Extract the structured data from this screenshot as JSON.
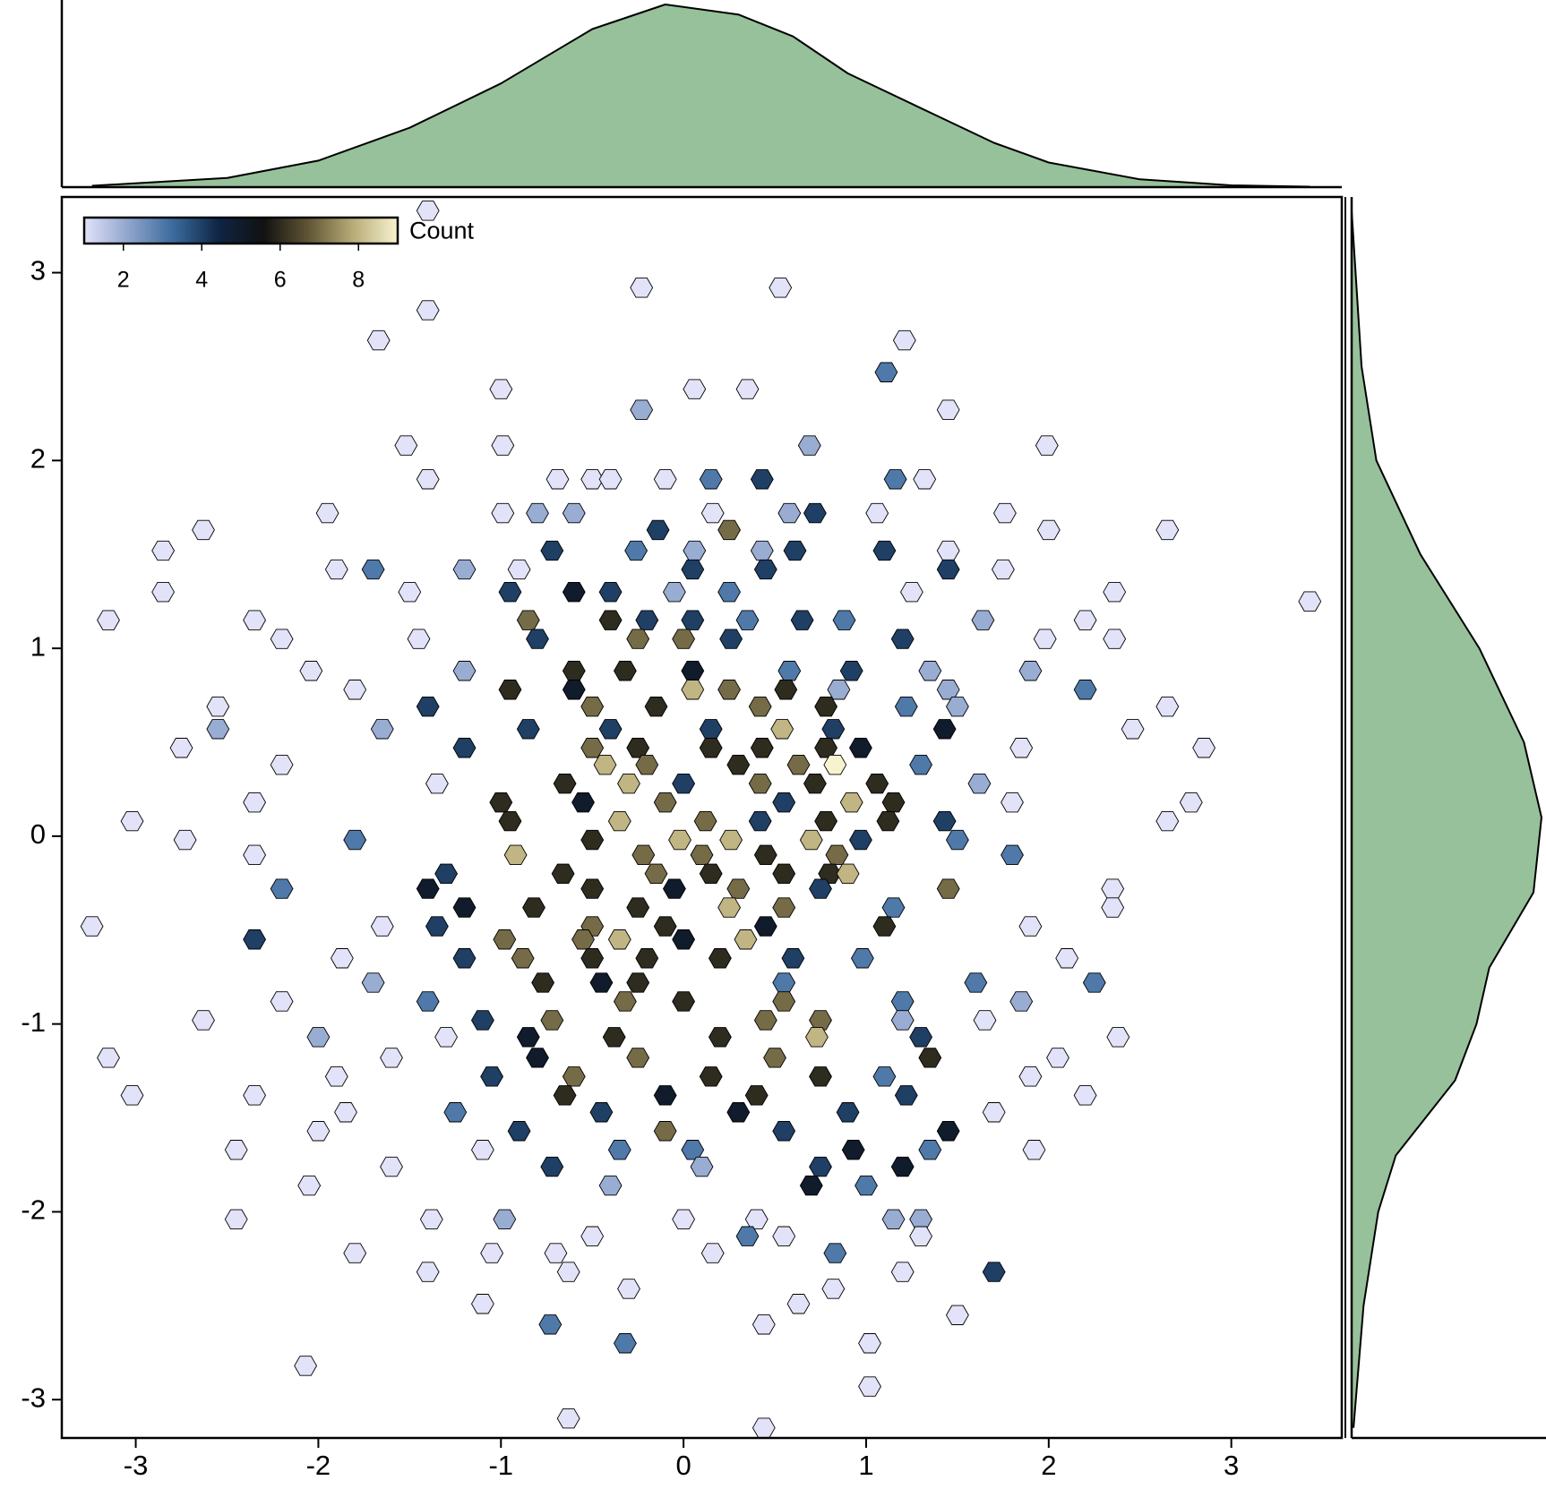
{
  "chart_data": {
    "type": "hexbin",
    "xlim": [
      -3.405,
      3.605
    ],
    "ylim": [
      -3.204,
      3.403
    ],
    "xticks": [
      -3,
      -2,
      -1,
      0,
      1,
      2,
      3
    ],
    "yticks": [
      -3,
      -2,
      -1,
      0,
      1,
      2,
      3
    ],
    "colorbar": {
      "label": "Count",
      "lim": [
        1,
        9
      ],
      "ticks": [
        2,
        4,
        6,
        8
      ]
    },
    "colormap": [
      "#e2e2f8",
      "#8ea4cc",
      "#3a6a9c",
      "#0f2544",
      "#111111",
      "#5f5535",
      "#b8ac78",
      "#f7f3cf"
    ],
    "kde_color": "#97c19a",
    "top_kde": {
      "x": [
        -3.24,
        -2.5,
        -2.0,
        -1.5,
        -1.0,
        -0.5,
        -0.1,
        0.3,
        0.6,
        0.9,
        1.3,
        1.7,
        2.0,
        2.5,
        3.0,
        3.43
      ],
      "density": [
        0.003,
        0.02,
        0.058,
        0.13,
        0.227,
        0.346,
        0.4,
        0.378,
        0.33,
        0.249,
        0.173,
        0.097,
        0.054,
        0.017,
        0.004,
        0.001
      ]
    },
    "right_kde": {
      "y": [
        3.33,
        2.5,
        2.0,
        1.5,
        1.0,
        0.5,
        0.1,
        -0.3,
        -0.7,
        -1.0,
        -1.3,
        -1.7,
        -2.0,
        -2.5,
        -3.15
      ],
      "density": [
        0.0,
        0.021,
        0.052,
        0.145,
        0.269,
        0.363,
        0.4,
        0.383,
        0.29,
        0.263,
        0.218,
        0.093,
        0.056,
        0.025,
        0.004
      ]
    },
    "rows": [
      {
        "y": 3.33,
        "x": [
          -1.4
        ],
        "counts": [
          1
        ]
      },
      {
        "y": 2.92,
        "x": [
          -0.23,
          0.53
        ],
        "counts": [
          1,
          1
        ]
      },
      {
        "y": 2.8,
        "x": [
          -1.4
        ],
        "counts": [
          1
        ]
      },
      {
        "y": 2.64,
        "x": [
          -1.67,
          1.21
        ],
        "counts": [
          1,
          1
        ]
      },
      {
        "y": 2.47,
        "x": [
          1.11
        ],
        "counts": [
          3
        ]
      },
      {
        "y": 2.38,
        "x": [
          -1.0,
          0.06,
          0.35
        ],
        "counts": [
          1,
          1,
          1
        ]
      },
      {
        "y": 2.27,
        "x": [
          -0.23,
          1.45
        ],
        "counts": [
          2,
          1
        ]
      },
      {
        "y": 2.08,
        "x": [
          -1.52,
          -0.99,
          0.69,
          1.99
        ],
        "counts": [
          1,
          1,
          2,
          1
        ]
      },
      {
        "y": 1.9,
        "x": [
          -1.4,
          -0.69,
          -0.5,
          -0.4,
          -0.1,
          0.15,
          0.43,
          1.16,
          1.32
        ],
        "counts": [
          1,
          1,
          1,
          1,
          1,
          3,
          4,
          3,
          1
        ]
      },
      {
        "y": 1.72,
        "x": [
          -1.95,
          -0.99,
          -0.8,
          -0.6,
          0.16,
          0.58,
          0.72,
          1.06,
          1.76
        ],
        "counts": [
          1,
          1,
          2,
          2,
          1,
          2,
          4,
          1,
          1
        ]
      },
      {
        "y": 1.63,
        "x": [
          -2.63,
          -0.14,
          0.25,
          2.0,
          2.65
        ],
        "counts": [
          1,
          4,
          7,
          1,
          1
        ]
      },
      {
        "y": 1.52,
        "x": [
          -2.85,
          -0.72,
          -0.26,
          0.06,
          0.43,
          0.61,
          1.1,
          1.45
        ],
        "counts": [
          1,
          4,
          3,
          2,
          2,
          4,
          4,
          1
        ]
      },
      {
        "y": 1.42,
        "x": [
          -1.9,
          -1.7,
          -1.2,
          -0.9,
          0.05,
          0.45,
          1.45,
          1.75
        ],
        "counts": [
          1,
          3,
          2,
          1,
          4,
          4,
          4,
          1
        ]
      },
      {
        "y": 1.3,
        "x": [
          -2.85,
          -1.5,
          -0.95,
          -0.6,
          -0.4,
          -0.05,
          0.25,
          1.25,
          2.36
        ],
        "counts": [
          1,
          1,
          4,
          5,
          4,
          2,
          3,
          1,
          1
        ]
      },
      {
        "y": 1.25,
        "x": [
          3.43
        ],
        "counts": [
          1
        ]
      },
      {
        "y": 1.15,
        "x": [
          -3.15,
          -2.35,
          -0.85,
          -0.4,
          -0.2,
          0.05,
          0.35,
          0.65,
          0.88,
          1.64,
          2.2
        ],
        "counts": [
          1,
          1,
          7,
          6,
          4,
          4,
          3,
          4,
          3,
          2,
          1
        ]
      },
      {
        "y": 1.05,
        "x": [
          -2.2,
          -1.45,
          -0.8,
          -0.25,
          0.0,
          0.26,
          1.2,
          1.98,
          2.36
        ],
        "counts": [
          1,
          1,
          4,
          7,
          7,
          4,
          4,
          1,
          1
        ]
      },
      {
        "y": 0.88,
        "x": [
          -2.04,
          -1.2,
          -0.6,
          -0.32,
          0.05,
          0.58,
          0.92,
          1.35,
          1.9
        ],
        "counts": [
          1,
          2,
          6,
          6,
          5,
          3,
          4,
          2,
          2
        ]
      },
      {
        "y": 0.78,
        "x": [
          -1.8,
          -0.95,
          -0.6,
          0.05,
          0.25,
          0.56,
          0.85,
          1.45,
          2.2
        ],
        "counts": [
          1,
          6,
          5,
          8,
          7,
          6,
          2,
          2,
          3
        ]
      },
      {
        "y": 0.69,
        "x": [
          -2.55,
          -1.4,
          -0.5,
          -0.15,
          0.42,
          0.78,
          1.22,
          1.5,
          2.65
        ],
        "counts": [
          1,
          4,
          7,
          6,
          7,
          6,
          3,
          2,
          1
        ]
      },
      {
        "y": 0.57,
        "x": [
          -2.55,
          -1.65,
          -0.85,
          -0.4,
          0.15,
          0.54,
          0.82,
          1.43,
          2.46
        ],
        "counts": [
          2,
          2,
          4,
          4,
          4,
          8,
          4,
          5,
          1
        ]
      },
      {
        "y": 0.47,
        "x": [
          -2.75,
          -1.2,
          -0.5,
          -0.25,
          0.15,
          0.43,
          0.78,
          0.97,
          1.85,
          2.85
        ],
        "counts": [
          1,
          4,
          7,
          6,
          6,
          6,
          6,
          5,
          1,
          1
        ]
      },
      {
        "y": 0.38,
        "x": [
          -2.2,
          -0.43,
          -0.2,
          0.3,
          0.63,
          0.83,
          1.3
        ],
        "counts": [
          1,
          8,
          7,
          6,
          7,
          9,
          3
        ]
      },
      {
        "y": 0.28,
        "x": [
          -1.35,
          -0.65,
          -0.3,
          0.0,
          0.42,
          0.72,
          1.06,
          1.62
        ],
        "counts": [
          1,
          6,
          8,
          4,
          7,
          6,
          6,
          2
        ]
      },
      {
        "y": 0.18,
        "x": [
          -2.35,
          -1.0,
          -0.55,
          -0.1,
          0.55,
          0.92,
          1.15,
          1.8,
          2.78
        ],
        "counts": [
          1,
          6,
          5,
          7,
          4,
          8,
          6,
          1,
          1
        ]
      },
      {
        "y": 0.08,
        "x": [
          -3.02,
          -0.95,
          -0.35,
          0.12,
          0.42,
          0.78,
          1.12,
          1.43,
          2.65
        ],
        "counts": [
          1,
          6,
          8,
          7,
          4,
          6,
          6,
          4,
          1
        ]
      },
      {
        "y": -0.02,
        "x": [
          -2.73,
          -1.8,
          -0.5,
          -0.02,
          0.26,
          0.7,
          0.97,
          1.5
        ],
        "counts": [
          1,
          3,
          6,
          8,
          8,
          8,
          4,
          3
        ]
      },
      {
        "y": -0.1,
        "x": [
          -2.35,
          -0.92,
          -0.22,
          0.1,
          0.45,
          0.84,
          1.8
        ],
        "counts": [
          1,
          8,
          7,
          7,
          6,
          7,
          3
        ]
      },
      {
        "y": -0.2,
        "x": [
          -1.3,
          -0.66,
          -0.15,
          0.15,
          0.55,
          0.8,
          0.9
        ],
        "counts": [
          4,
          6,
          7,
          6,
          6,
          6,
          8
        ]
      },
      {
        "y": -0.28,
        "x": [
          -2.2,
          -1.4,
          -0.5,
          -0.05,
          0.3,
          0.75,
          1.45,
          2.35
        ],
        "counts": [
          3,
          5,
          6,
          5,
          7,
          4,
          7,
          1
        ]
      },
      {
        "y": -0.38,
        "x": [
          -1.2,
          -0.82,
          -0.25,
          0.25,
          0.55,
          1.15,
          2.35
        ],
        "counts": [
          5,
          6,
          6,
          8,
          7,
          3,
          1
        ]
      },
      {
        "y": -0.48,
        "x": [
          -3.24,
          -1.65,
          -1.35,
          -0.5,
          -0.1,
          0.45,
          1.1,
          1.9
        ],
        "counts": [
          1,
          1,
          4,
          7,
          6,
          5,
          6,
          1
        ]
      },
      {
        "y": -0.55,
        "x": [
          -2.35,
          -0.98,
          -0.55,
          -0.35,
          0.0,
          0.34
        ],
        "counts": [
          4,
          7,
          7,
          8,
          5,
          8
        ]
      },
      {
        "y": -0.65,
        "x": [
          -1.87,
          -1.2,
          -0.88,
          -0.5,
          -0.2,
          0.2,
          0.6,
          0.98,
          2.1
        ],
        "counts": [
          1,
          4,
          7,
          6,
          6,
          6,
          4,
          3,
          1
        ]
      },
      {
        "y": -0.78,
        "x": [
          -1.7,
          -0.77,
          -0.45,
          -0.25,
          0.55,
          1.6,
          2.25
        ],
        "counts": [
          2,
          6,
          5,
          6,
          3,
          3,
          3
        ]
      },
      {
        "y": -0.88,
        "x": [
          -2.2,
          -1.4,
          -0.32,
          0.0,
          0.55,
          1.2,
          1.85
        ],
        "counts": [
          1,
          3,
          7,
          6,
          7,
          3,
          2
        ]
      },
      {
        "y": -0.98,
        "x": [
          -2.63,
          -1.1,
          -0.72,
          0.45,
          0.75,
          1.2,
          1.65
        ],
        "counts": [
          1,
          4,
          7,
          7,
          7,
          2,
          1
        ]
      },
      {
        "y": -1.07,
        "x": [
          -2.0,
          -1.3,
          -0.85,
          -0.38,
          0.2,
          0.73,
          1.3,
          2.38
        ],
        "counts": [
          2,
          1,
          5,
          6,
          6,
          8,
          4,
          1
        ]
      },
      {
        "y": -1.18,
        "x": [
          -3.15,
          -1.6,
          -0.8,
          -0.25,
          0.5,
          1.35,
          2.05
        ],
        "counts": [
          1,
          1,
          5,
          7,
          7,
          6,
          1
        ]
      },
      {
        "y": -1.28,
        "x": [
          -1.9,
          -1.05,
          -0.6,
          0.15,
          0.75,
          1.1,
          1.9
        ],
        "counts": [
          1,
          4,
          7,
          6,
          6,
          3,
          1
        ]
      },
      {
        "y": -1.38,
        "x": [
          -3.02,
          -2.35,
          -0.65,
          -0.1,
          0.4,
          1.22,
          2.2
        ],
        "counts": [
          1,
          1,
          6,
          5,
          6,
          4,
          1
        ]
      },
      {
        "y": -1.47,
        "x": [
          -1.85,
          -1.25,
          -0.45,
          0.3,
          0.9,
          1.7
        ],
        "counts": [
          1,
          3,
          4,
          5,
          4,
          1
        ]
      },
      {
        "y": -1.57,
        "x": [
          -2.0,
          -0.9,
          -0.1,
          0.55,
          1.45
        ],
        "counts": [
          1,
          4,
          7,
          4,
          5
        ]
      },
      {
        "y": -1.67,
        "x": [
          -2.45,
          -1.1,
          -0.35,
          0.05,
          0.93,
          1.35,
          1.92
        ],
        "counts": [
          1,
          1,
          3,
          3,
          5,
          3,
          1
        ]
      },
      {
        "y": -1.76,
        "x": [
          -1.6,
          -0.72,
          0.1,
          0.75,
          1.2
        ],
        "counts": [
          1,
          4,
          2,
          4,
          5
        ]
      },
      {
        "y": -1.86,
        "x": [
          -2.05,
          -0.4,
          0.7,
          1.0
        ],
        "counts": [
          1,
          2,
          5,
          3
        ]
      },
      {
        "y": -2.04,
        "x": [
          -2.45,
          -1.38,
          -0.98,
          0.0,
          0.4,
          1.15,
          1.3
        ],
        "counts": [
          1,
          1,
          2,
          1,
          1,
          2,
          2
        ]
      },
      {
        "y": -2.13,
        "x": [
          -0.5,
          0.35,
          0.55,
          1.3
        ],
        "counts": [
          1,
          3,
          1,
          1
        ]
      },
      {
        "y": -2.22,
        "x": [
          -1.8,
          -1.05,
          -0.7,
          0.16,
          0.83
        ],
        "counts": [
          1,
          1,
          1,
          1,
          3
        ]
      },
      {
        "y": -2.32,
        "x": [
          -1.4,
          -0.63,
          1.2,
          1.7
        ],
        "counts": [
          1,
          1,
          1,
          4
        ]
      },
      {
        "y": -2.41,
        "x": [
          -0.3,
          0.82
        ],
        "counts": [
          1,
          1
        ]
      },
      {
        "y": -2.49,
        "x": [
          -1.1,
          0.63
        ],
        "counts": [
          1,
          1
        ]
      },
      {
        "y": -2.55,
        "x": [
          1.5
        ],
        "counts": [
          1
        ]
      },
      {
        "y": -2.6,
        "x": [
          -0.73,
          0.44
        ],
        "counts": [
          3,
          1
        ]
      },
      {
        "y": -2.7,
        "x": [
          -0.32,
          1.02
        ],
        "counts": [
          3,
          1
        ]
      },
      {
        "y": -2.82,
        "x": [
          -2.07
        ],
        "counts": [
          1
        ]
      },
      {
        "y": -2.93,
        "x": [
          1.02
        ],
        "counts": [
          1
        ]
      },
      {
        "y": -3.1,
        "x": [
          -0.63
        ],
        "counts": [
          1
        ]
      },
      {
        "y": -3.15,
        "x": [
          0.44
        ],
        "counts": [
          1
        ]
      }
    ]
  }
}
